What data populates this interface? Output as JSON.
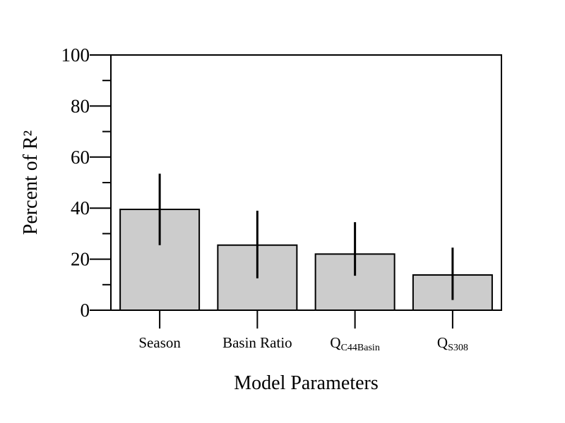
{
  "chart_data": {
    "type": "bar",
    "xlabel": "Model Parameters",
    "ylabel": "Percent of R²",
    "ylim": [
      0,
      100
    ],
    "yticks": [
      "0",
      "20",
      "40",
      "60",
      "80",
      "100"
    ],
    "grid": false,
    "error_bars": true,
    "categories": [
      {
        "main": "Season",
        "sub": ""
      },
      {
        "main": "Basin Ratio",
        "sub": ""
      },
      {
        "main": "Q",
        "sub": "C44Basin"
      },
      {
        "main": "Q",
        "sub": "S308"
      }
    ],
    "values": [
      39.5,
      25.5,
      22,
      13.8
    ],
    "error_low": [
      25.5,
      12.5,
      13.5,
      4
    ],
    "error_high": [
      53.5,
      39,
      34.5,
      24.5
    ],
    "colors": {
      "bar_fill": "#cccccc",
      "bar_stroke": "#000000",
      "axis": "#000000",
      "error_bar": "#000000"
    }
  }
}
